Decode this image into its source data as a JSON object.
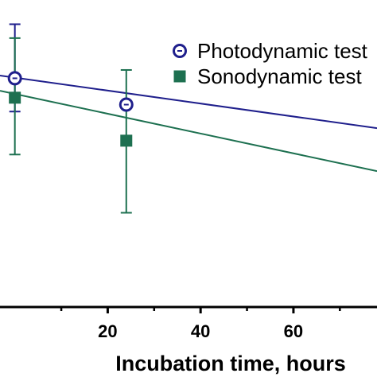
{
  "chart_data": {
    "type": "scatter",
    "xlabel": "Incubation time, hours",
    "ylabel": "",
    "xlim": [
      -3.2,
      78
    ],
    "ylim": [
      -1.05,
      1.05
    ],
    "x_ticks": [
      20,
      40,
      60
    ],
    "legend_position": "top-right",
    "grid": false,
    "series": [
      {
        "name": "Photodynamic test",
        "marker": "open-circle",
        "color": "#1f1f8c",
        "points": [
          {
            "x": 0,
            "y": 0.6,
            "err_low": 0.36,
            "err_high": 0.99
          },
          {
            "x": 24,
            "y": 0.41,
            "err_low": null,
            "err_high": null
          }
        ],
        "fit_line": [
          [
            -3.2,
            0.62
          ],
          [
            78,
            0.24
          ]
        ]
      },
      {
        "name": "Sonodynamic test",
        "marker": "filled-square",
        "color": "#1d7050",
        "points": [
          {
            "x": 0,
            "y": 0.46,
            "err_low": 0.05,
            "err_high": 0.89
          },
          {
            "x": 24,
            "y": 0.15,
            "err_low": -0.37,
            "err_high": 0.66
          }
        ],
        "fit_line": [
          [
            -3.2,
            0.51
          ],
          [
            78,
            -0.07
          ]
        ]
      }
    ]
  }
}
